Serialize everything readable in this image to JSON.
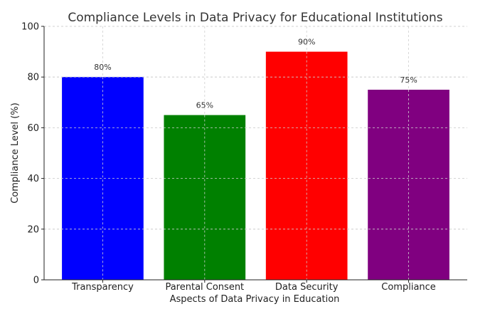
{
  "chart_data": {
    "type": "bar",
    "title": "Compliance Levels in Data Privacy for Educational Institutions",
    "xlabel": "Aspects of Data Privacy in Education",
    "ylabel": "Compliance Level (%)",
    "categories": [
      "Transparency",
      "Parental Consent",
      "Data Security",
      "Compliance"
    ],
    "values": [
      80,
      65,
      90,
      75
    ],
    "data_labels": [
      "80%",
      "65%",
      "90%",
      "75%"
    ],
    "colors": [
      "#0000ff",
      "#008000",
      "#ff0000",
      "#800080"
    ],
    "ylim": [
      0,
      100
    ],
    "yticks": [
      0,
      20,
      40,
      60,
      80,
      100
    ],
    "grid": true,
    "legend": "none"
  }
}
